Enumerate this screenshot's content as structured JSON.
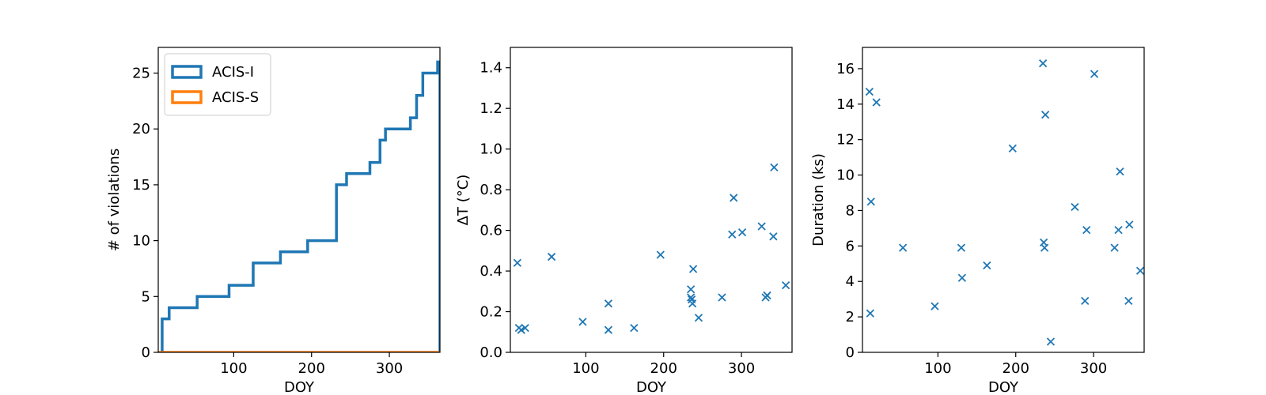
{
  "figure": {
    "accent_blue": "#1f77b4",
    "accent_orange": "#ff7f0e"
  },
  "chart_data": [
    {
      "type": "line",
      "step": true,
      "xlabel": "DOY",
      "ylabel": "# of violations",
      "xlim": [
        3,
        365
      ],
      "ylim": [
        0,
        27.3
      ],
      "xticks": [
        100,
        200,
        300
      ],
      "yticks": [
        0,
        5,
        10,
        15,
        20,
        25
      ],
      "legend_position": "upper-left",
      "series": [
        {
          "name": "ACIS-I",
          "color": "#1f77b4",
          "x": [
            8,
            8,
            12,
            12,
            17,
            17,
            53,
            53,
            94,
            94,
            125,
            125,
            160,
            160,
            195,
            195,
            232,
            232,
            245,
            245,
            275,
            275,
            288,
            288,
            295,
            295,
            327,
            327,
            335,
            335,
            343,
            343,
            362,
            362,
            365,
            365
          ],
          "y": [
            0,
            3,
            3,
            3,
            3,
            4,
            4,
            5,
            5,
            6,
            6,
            8,
            8,
            9,
            9,
            10,
            10,
            15,
            15,
            16,
            16,
            17,
            17,
            19,
            19,
            20,
            20,
            21,
            21,
            23,
            23,
            25,
            25,
            26,
            26,
            0
          ]
        },
        {
          "name": "ACIS-S",
          "color": "#ff7f0e",
          "x": [
            3,
            365
          ],
          "y": [
            0,
            0
          ]
        }
      ]
    },
    {
      "type": "scatter",
      "marker": "x",
      "xlabel": "DOY",
      "ylabel": "ΔT (°C)",
      "xlim": [
        3,
        365
      ],
      "ylim": [
        0,
        1.5
      ],
      "xticks": [
        100,
        200,
        300
      ],
      "yticks": [
        0.0,
        0.2,
        0.4,
        0.6,
        0.8,
        1.0,
        1.2,
        1.4
      ],
      "ytick_labels": [
        "0.0",
        "0.2",
        "0.4",
        "0.6",
        "0.8",
        "1.0",
        "1.2",
        "1.4"
      ],
      "series": [
        {
          "color": "#1f77b4",
          "x": [
            12,
            14,
            17,
            22,
            56,
            96,
            129,
            129,
            162,
            196,
            235,
            235,
            236,
            237,
            238,
            245,
            275,
            288,
            290,
            301,
            326,
            331,
            333,
            341,
            342,
            357
          ],
          "y": [
            0.44,
            0.12,
            0.11,
            0.12,
            0.47,
            0.15,
            0.11,
            0.24,
            0.12,
            0.48,
            0.31,
            0.27,
            0.26,
            0.24,
            0.41,
            0.17,
            0.27,
            0.58,
            0.76,
            0.59,
            0.62,
            0.27,
            0.28,
            0.57,
            0.91,
            0.33
          ]
        }
      ]
    },
    {
      "type": "scatter",
      "marker": "x",
      "xlabel": "DOY",
      "ylabel": "Duration (ks)",
      "xlim": [
        3,
        365
      ],
      "ylim": [
        0,
        17.2
      ],
      "xticks": [
        100,
        200,
        300
      ],
      "yticks": [
        0,
        2,
        4,
        6,
        8,
        10,
        12,
        14,
        16
      ],
      "series": [
        {
          "color": "#1f77b4",
          "x": [
            12,
            13,
            14,
            21,
            55,
            96,
            130,
            131,
            163,
            196,
            235,
            236,
            237,
            238,
            245,
            276,
            289,
            291,
            301,
            327,
            332,
            334,
            345,
            346,
            360
          ],
          "y": [
            14.7,
            2.2,
            8.5,
            14.1,
            5.9,
            2.6,
            5.9,
            4.2,
            4.9,
            11.5,
            16.3,
            6.2,
            5.9,
            13.4,
            0.6,
            8.2,
            2.9,
            6.9,
            15.7,
            5.9,
            6.9,
            10.2,
            2.9,
            7.2,
            4.6
          ]
        }
      ]
    }
  ]
}
